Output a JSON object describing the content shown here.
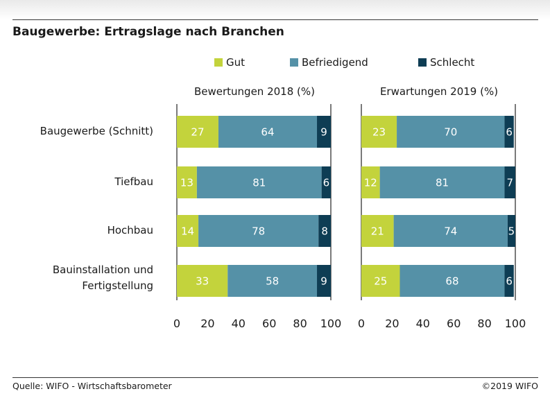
{
  "title": "Baugewerbe: Ertragslage nach Branchen",
  "legend": [
    {
      "label": "Gut",
      "color": "#c3d33c"
    },
    {
      "label": "Befriedigend",
      "color": "#5591a7"
    },
    {
      "label": "Schlecht",
      "color": "#0e3d54"
    }
  ],
  "footer": {
    "source": "Quelle: WIFO - Wirtschaftsbarometer",
    "copyright": "©2019 WIFO"
  },
  "chart_data": [
    {
      "type": "bar",
      "orientation": "horizontal",
      "stacked": true,
      "title": "Bewertungen 2018 (%)",
      "categories": [
        "Baugewerbe (Schnitt)",
        "Tiefbau",
        "Hochbau",
        "Bauinstallation und\nFertigstellung"
      ],
      "series": [
        {
          "name": "Gut",
          "values": [
            27,
            13,
            14,
            33
          ]
        },
        {
          "name": "Befriedigend",
          "values": [
            64,
            81,
            78,
            58
          ]
        },
        {
          "name": "Schlecht",
          "values": [
            9,
            6,
            8,
            9
          ]
        }
      ],
      "xlim": [
        0,
        100
      ],
      "xticks": [
        "0",
        "20",
        "40",
        "60",
        "80",
        "100"
      ],
      "grid": false,
      "legend_position": "top"
    },
    {
      "type": "bar",
      "orientation": "horizontal",
      "stacked": true,
      "title": "Erwartungen 2019 (%)",
      "categories": [
        "Baugewerbe (Schnitt)",
        "Tiefbau",
        "Hochbau",
        "Bauinstallation und\nFertigstellung"
      ],
      "series": [
        {
          "name": "Gut",
          "values": [
            23,
            12,
            21,
            25
          ]
        },
        {
          "name": "Befriedigend",
          "values": [
            70,
            81,
            74,
            68
          ]
        },
        {
          "name": "Schlecht",
          "values": [
            6,
            7,
            5,
            6
          ]
        }
      ],
      "xlim": [
        0,
        100
      ],
      "xticks": [
        "0",
        "20",
        "40",
        "60",
        "80",
        "100"
      ],
      "grid": false,
      "legend_position": "top"
    }
  ]
}
